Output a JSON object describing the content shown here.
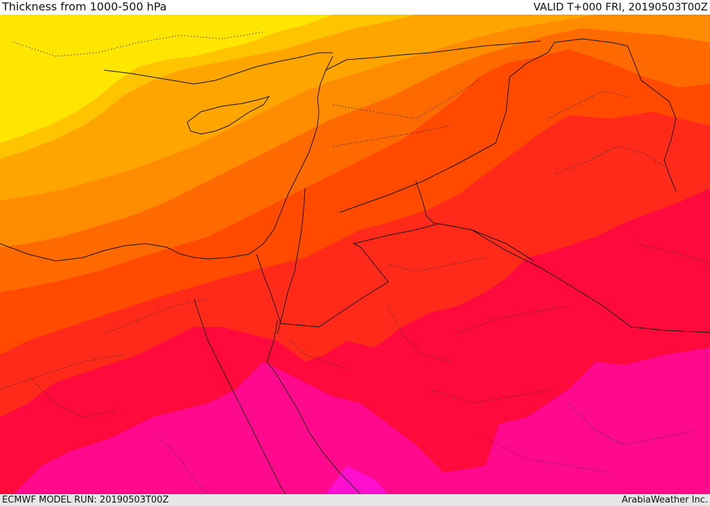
{
  "header": {
    "title": "Thickness from 1000-500 hPa",
    "valid": "VALID T+000 FRI, 20190503T00Z"
  },
  "footer": {
    "model_run": "ECMWF MODEL RUN: 20190503T00Z",
    "credit": "ArabiaWeather Inc."
  },
  "map": {
    "colors": {
      "band1": "#ffe600",
      "band2": "#ffc400",
      "band3": "#ffa500",
      "band4": "#ff8c00",
      "band5": "#ff6a00",
      "band6": "#ff4a00",
      "band7": "#ff2a1a",
      "band8": "#ff0a3c",
      "band9": "#ff0a8c",
      "band10": "#ff10d0",
      "border": "#111111"
    }
  }
}
